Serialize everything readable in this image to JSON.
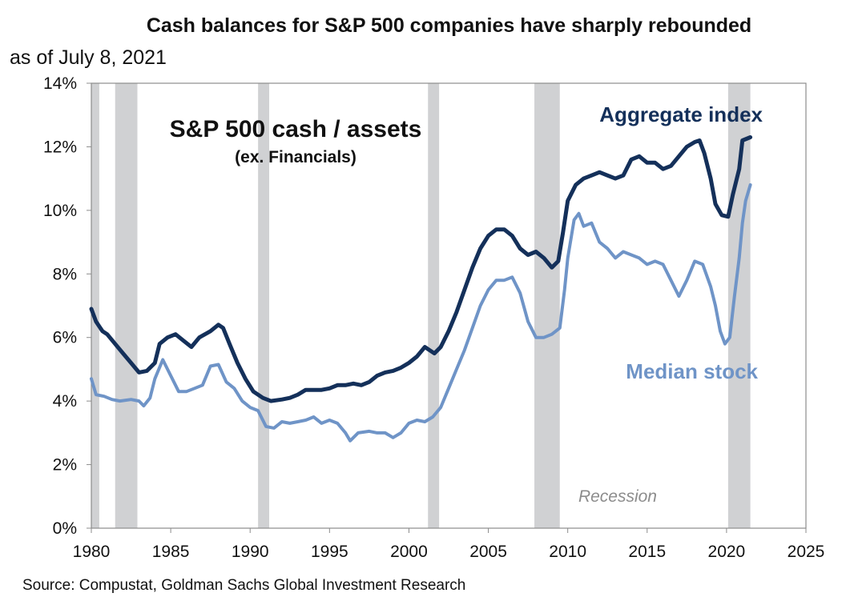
{
  "chart_data": {
    "type": "line",
    "title": "Cash balances for S&P 500 companies have sharply rebounded",
    "subtitle": "as of July 8, 2021",
    "inner_title": "S&P 500 cash / assets",
    "inner_subtitle": "(ex. Financials)",
    "source": "Source: Compustat, Goldman Sachs Global Investment Research",
    "xlim": [
      1980,
      2025
    ],
    "ylim": [
      0,
      14
    ],
    "x_ticks": [
      "1980",
      "1985",
      "1990",
      "1995",
      "2000",
      "2005",
      "2010",
      "2015",
      "2020",
      "2025"
    ],
    "x_tick_values": [
      1980,
      1985,
      1990,
      1995,
      2000,
      2005,
      2010,
      2015,
      2020,
      2025
    ],
    "y_ticks": [
      "0%",
      "2%",
      "4%",
      "6%",
      "8%",
      "10%",
      "12%",
      "14%"
    ],
    "y_tick_values": [
      0,
      2,
      4,
      6,
      8,
      10,
      12,
      14
    ],
    "grid": false,
    "recession_label": "Recession",
    "recessions": [
      [
        1980.0,
        1980.5
      ],
      [
        1981.5,
        1982.9
      ],
      [
        1990.5,
        1991.2
      ],
      [
        2001.2,
        2001.9
      ],
      [
        2007.9,
        2009.5
      ],
      [
        2020.1,
        2021.5
      ]
    ],
    "series": [
      {
        "name": "Aggregate index",
        "color": "#14305a",
        "points": [
          [
            1980.0,
            6.9
          ],
          [
            1980.3,
            6.5
          ],
          [
            1980.7,
            6.2
          ],
          [
            1981.0,
            6.1
          ],
          [
            1981.5,
            5.8
          ],
          [
            1982.0,
            5.5
          ],
          [
            1982.5,
            5.2
          ],
          [
            1983.0,
            4.9
          ],
          [
            1983.5,
            4.95
          ],
          [
            1984.0,
            5.2
          ],
          [
            1984.3,
            5.8
          ],
          [
            1984.8,
            6.0
          ],
          [
            1985.3,
            6.1
          ],
          [
            1985.8,
            5.9
          ],
          [
            1986.3,
            5.7
          ],
          [
            1986.8,
            6.0
          ],
          [
            1987.5,
            6.2
          ],
          [
            1988.0,
            6.4
          ],
          [
            1988.3,
            6.3
          ],
          [
            1988.7,
            5.8
          ],
          [
            1989.2,
            5.2
          ],
          [
            1989.7,
            4.7
          ],
          [
            1990.2,
            4.3
          ],
          [
            1990.8,
            4.1
          ],
          [
            1991.3,
            4.0
          ],
          [
            1992.0,
            4.05
          ],
          [
            1992.5,
            4.1
          ],
          [
            1993.0,
            4.2
          ],
          [
            1993.5,
            4.35
          ],
          [
            1994.0,
            4.35
          ],
          [
            1994.5,
            4.35
          ],
          [
            1995.0,
            4.4
          ],
          [
            1995.5,
            4.5
          ],
          [
            1996.0,
            4.5
          ],
          [
            1996.5,
            4.55
          ],
          [
            1997.0,
            4.5
          ],
          [
            1997.5,
            4.6
          ],
          [
            1998.0,
            4.8
          ],
          [
            1998.5,
            4.9
          ],
          [
            1999.0,
            4.95
          ],
          [
            1999.5,
            5.05
          ],
          [
            2000.0,
            5.2
          ],
          [
            2000.5,
            5.4
          ],
          [
            2001.0,
            5.7
          ],
          [
            2001.3,
            5.6
          ],
          [
            2001.6,
            5.5
          ],
          [
            2002.0,
            5.7
          ],
          [
            2002.5,
            6.2
          ],
          [
            2003.0,
            6.8
          ],
          [
            2003.5,
            7.5
          ],
          [
            2004.0,
            8.2
          ],
          [
            2004.5,
            8.8
          ],
          [
            2005.0,
            9.2
          ],
          [
            2005.5,
            9.4
          ],
          [
            2006.0,
            9.4
          ],
          [
            2006.5,
            9.2
          ],
          [
            2007.0,
            8.8
          ],
          [
            2007.5,
            8.6
          ],
          [
            2008.0,
            8.7
          ],
          [
            2008.5,
            8.5
          ],
          [
            2009.0,
            8.2
          ],
          [
            2009.4,
            8.4
          ],
          [
            2009.7,
            9.3
          ],
          [
            2010.0,
            10.3
          ],
          [
            2010.5,
            10.8
          ],
          [
            2011.0,
            11.0
          ],
          [
            2011.5,
            11.1
          ],
          [
            2012.0,
            11.2
          ],
          [
            2012.5,
            11.1
          ],
          [
            2013.0,
            11.0
          ],
          [
            2013.5,
            11.1
          ],
          [
            2014.0,
            11.6
          ],
          [
            2014.5,
            11.7
          ],
          [
            2015.0,
            11.5
          ],
          [
            2015.5,
            11.5
          ],
          [
            2016.0,
            11.3
          ],
          [
            2016.5,
            11.4
          ],
          [
            2017.0,
            11.7
          ],
          [
            2017.5,
            12.0
          ],
          [
            2018.0,
            12.15
          ],
          [
            2018.3,
            12.2
          ],
          [
            2018.6,
            11.8
          ],
          [
            2019.0,
            11.0
          ],
          [
            2019.3,
            10.2
          ],
          [
            2019.7,
            9.85
          ],
          [
            2020.1,
            9.8
          ],
          [
            2020.4,
            10.5
          ],
          [
            2020.8,
            11.3
          ],
          [
            2021.0,
            12.2
          ],
          [
            2021.5,
            12.3
          ]
        ]
      },
      {
        "name": "Median stock",
        "color": "#6f94c7",
        "points": [
          [
            1980.0,
            4.7
          ],
          [
            1980.3,
            4.2
          ],
          [
            1980.8,
            4.15
          ],
          [
            1981.3,
            4.05
          ],
          [
            1981.8,
            4.0
          ],
          [
            1982.5,
            4.05
          ],
          [
            1983.0,
            4.0
          ],
          [
            1983.3,
            3.85
          ],
          [
            1983.7,
            4.1
          ],
          [
            1984.0,
            4.7
          ],
          [
            1984.5,
            5.3
          ],
          [
            1985.0,
            4.8
          ],
          [
            1985.5,
            4.3
          ],
          [
            1986.0,
            4.3
          ],
          [
            1986.5,
            4.4
          ],
          [
            1987.0,
            4.5
          ],
          [
            1987.5,
            5.1
          ],
          [
            1988.0,
            5.15
          ],
          [
            1988.5,
            4.6
          ],
          [
            1989.0,
            4.4
          ],
          [
            1989.5,
            4.0
          ],
          [
            1990.0,
            3.8
          ],
          [
            1990.5,
            3.7
          ],
          [
            1991.0,
            3.2
          ],
          [
            1991.5,
            3.15
          ],
          [
            1992.0,
            3.35
          ],
          [
            1992.5,
            3.3
          ],
          [
            1993.0,
            3.35
          ],
          [
            1993.5,
            3.4
          ],
          [
            1994.0,
            3.5
          ],
          [
            1994.5,
            3.3
          ],
          [
            1995.0,
            3.4
          ],
          [
            1995.5,
            3.3
          ],
          [
            1996.0,
            3.0
          ],
          [
            1996.3,
            2.75
          ],
          [
            1996.8,
            3.0
          ],
          [
            1997.5,
            3.05
          ],
          [
            1998.0,
            3.0
          ],
          [
            1998.5,
            3.0
          ],
          [
            1999.0,
            2.85
          ],
          [
            1999.5,
            3.0
          ],
          [
            2000.0,
            3.3
          ],
          [
            2000.5,
            3.4
          ],
          [
            2001.0,
            3.35
          ],
          [
            2001.5,
            3.5
          ],
          [
            2002.0,
            3.8
          ],
          [
            2002.5,
            4.4
          ],
          [
            2003.0,
            5.0
          ],
          [
            2003.5,
            5.6
          ],
          [
            2004.0,
            6.3
          ],
          [
            2004.5,
            7.0
          ],
          [
            2005.0,
            7.5
          ],
          [
            2005.5,
            7.8
          ],
          [
            2006.0,
            7.8
          ],
          [
            2006.5,
            7.9
          ],
          [
            2007.0,
            7.4
          ],
          [
            2007.5,
            6.5
          ],
          [
            2008.0,
            6.0
          ],
          [
            2008.5,
            6.0
          ],
          [
            2009.0,
            6.1
          ],
          [
            2009.5,
            6.3
          ],
          [
            2009.8,
            7.5
          ],
          [
            2010.0,
            8.5
          ],
          [
            2010.4,
            9.7
          ],
          [
            2010.7,
            9.9
          ],
          [
            2011.0,
            9.5
          ],
          [
            2011.5,
            9.6
          ],
          [
            2012.0,
            9.0
          ],
          [
            2012.5,
            8.8
          ],
          [
            2013.0,
            8.5
          ],
          [
            2013.5,
            8.7
          ],
          [
            2014.0,
            8.6
          ],
          [
            2014.5,
            8.5
          ],
          [
            2015.0,
            8.3
          ],
          [
            2015.5,
            8.4
          ],
          [
            2016.0,
            8.3
          ],
          [
            2016.5,
            7.8
          ],
          [
            2017.0,
            7.3
          ],
          [
            2017.5,
            7.8
          ],
          [
            2018.0,
            8.4
          ],
          [
            2018.5,
            8.3
          ],
          [
            2019.0,
            7.6
          ],
          [
            2019.3,
            7.0
          ],
          [
            2019.6,
            6.2
          ],
          [
            2019.9,
            5.8
          ],
          [
            2020.2,
            6.0
          ],
          [
            2020.5,
            7.3
          ],
          [
            2020.8,
            8.5
          ],
          [
            2021.0,
            9.6
          ],
          [
            2021.2,
            10.3
          ],
          [
            2021.5,
            10.8
          ]
        ]
      }
    ]
  }
}
